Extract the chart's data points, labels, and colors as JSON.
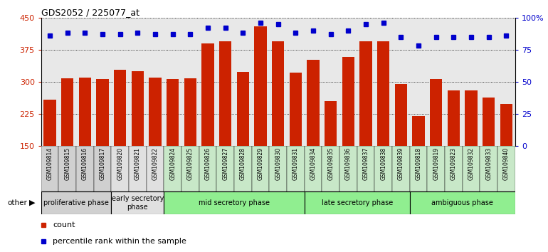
{
  "title": "GDS2052 / 225077_at",
  "samples": [
    "GSM109814",
    "GSM109815",
    "GSM109816",
    "GSM109817",
    "GSM109820",
    "GSM109821",
    "GSM109822",
    "GSM109824",
    "GSM109825",
    "GSM109826",
    "GSM109827",
    "GSM109828",
    "GSM109829",
    "GSM109830",
    "GSM109831",
    "GSM109834",
    "GSM109835",
    "GSM109836",
    "GSM109837",
    "GSM109838",
    "GSM109839",
    "GSM109818",
    "GSM109819",
    "GSM109823",
    "GSM109832",
    "GSM109833",
    "GSM109840"
  ],
  "counts": [
    258,
    308,
    310,
    307,
    328,
    325,
    310,
    307,
    308,
    390,
    395,
    323,
    430,
    395,
    322,
    352,
    255,
    358,
    395,
    395,
    295,
    220,
    307,
    280,
    280,
    263,
    248
  ],
  "percentile": [
    86,
    88,
    88,
    87,
    87,
    88,
    87,
    87,
    87,
    92,
    92,
    88,
    96,
    95,
    88,
    90,
    87,
    90,
    95,
    96,
    85,
    78,
    85,
    85,
    85,
    85,
    86
  ],
  "phases": [
    {
      "label": "proliferative phase",
      "start": 0,
      "end": 4,
      "color": "#d0d0d0"
    },
    {
      "label": "early secretory\nphase",
      "start": 4,
      "end": 7,
      "color": "#e0e0e0"
    },
    {
      "label": "mid secretory phase",
      "start": 7,
      "end": 15,
      "color": "#90ee90"
    },
    {
      "label": "late secretory phase",
      "start": 15,
      "end": 21,
      "color": "#90ee90"
    },
    {
      "label": "ambiguous phase",
      "start": 21,
      "end": 27,
      "color": "#90ee90"
    }
  ],
  "ylim_left": [
    150,
    450
  ],
  "yticks_left": [
    150,
    225,
    300,
    375,
    450
  ],
  "yticks_right_vals": [
    0,
    25,
    50,
    75,
    100
  ],
  "yticks_right_labels": [
    "0",
    "25",
    "50",
    "75",
    "100%"
  ],
  "bar_color": "#cc2200",
  "dot_color": "#0000cc",
  "chart_bg": "#e8e8e8",
  "tick_area_bg_colors": [
    "#d0d0d0",
    "#d0d0d0",
    "#d0d0d0",
    "#d0d0d0",
    "#e0e0e0",
    "#e0e0e0",
    "#e0e0e0",
    "#c8e8c8",
    "#c8e8c8",
    "#c8e8c8",
    "#c8e8c8",
    "#c8e8c8",
    "#c8e8c8",
    "#c8e8c8",
    "#c8e8c8",
    "#c8e8c8",
    "#c8e8c8",
    "#c8e8c8",
    "#c8e8c8",
    "#c8e8c8",
    "#c8e8c8",
    "#c8e8c8",
    "#c8e8c8",
    "#c8e8c8",
    "#c8e8c8",
    "#c8e8c8",
    "#c8e8c8"
  ]
}
